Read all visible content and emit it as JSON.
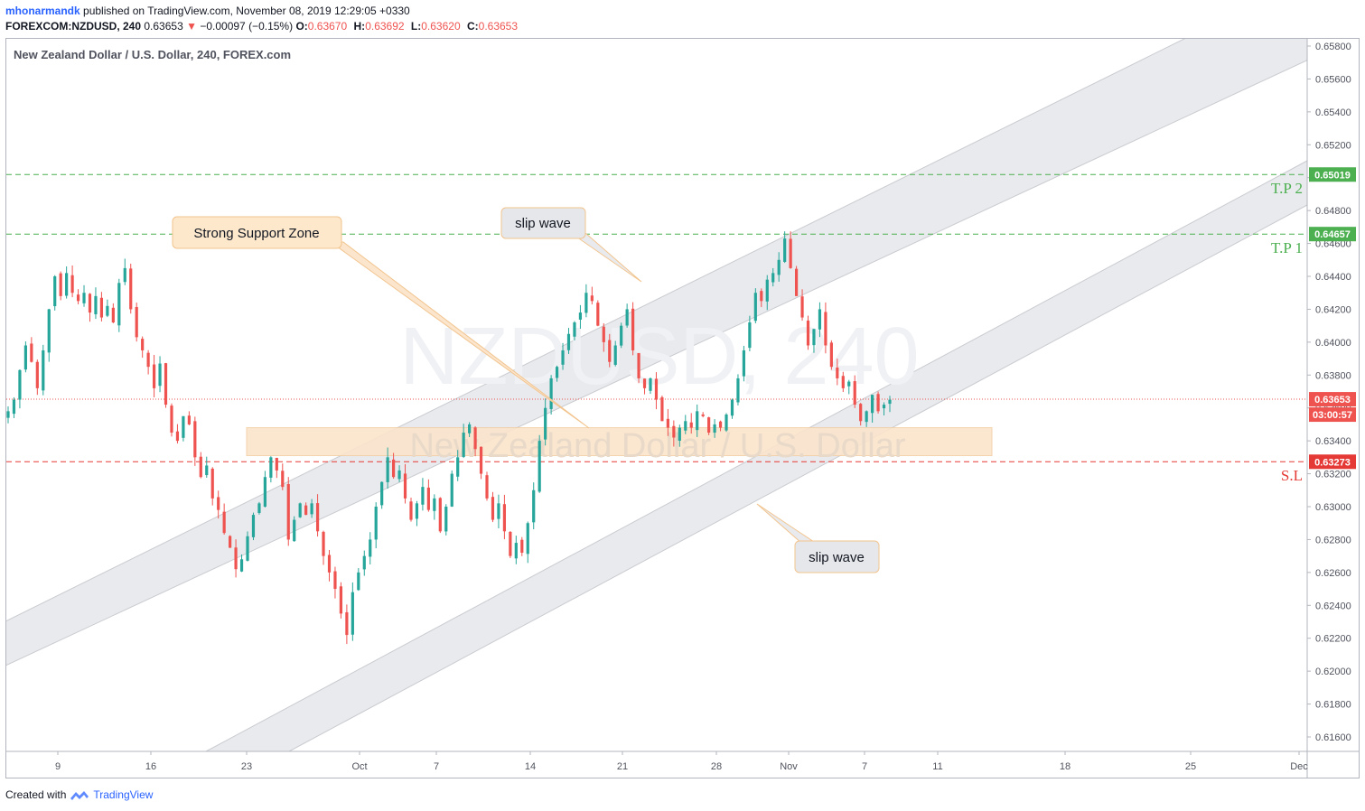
{
  "header": {
    "author": "mhonarmandk",
    "published_text": "published on TradingView.com, November 08, 2019 12:29:05 +0330",
    "symbol": "FOREXCOM:NZDUSD, 240",
    "last": "0.63653",
    "arrow": "▼",
    "change": "−0.00097 (−0.15%)",
    "o_label": "O:",
    "o_value": "0.63670",
    "h_label": "H:",
    "h_value": "0.63692",
    "l_label": "L:",
    "l_value": "0.63620",
    "c_label": "C:",
    "c_value": "0.63653"
  },
  "chart": {
    "title": "New Zealand Dollar / U.S. Dollar, 240, FOREX.com",
    "watermark_symbol": "NZDUSD, 240",
    "watermark_name": "New Zealand Dollar / U.S. Dollar"
  },
  "chart_data": {
    "type": "candlestick",
    "symbol": "NZDUSD",
    "timeframe": "240",
    "ylim": [
      0.615,
      0.659
    ],
    "y_ticks": [
      "0.65800",
      "0.65600",
      "0.65400",
      "0.65200",
      "0.65000",
      "0.64800",
      "0.64600",
      "0.64400",
      "0.64200",
      "0.64000",
      "0.63800",
      "0.63600",
      "0.63400",
      "0.63200",
      "0.63000",
      "0.62800",
      "0.62600",
      "0.62400",
      "0.62200",
      "0.62000",
      "0.61800",
      "0.61600"
    ],
    "x_ticks": [
      "9",
      "16",
      "23",
      "Oct",
      "7",
      "14",
      "21",
      "28",
      "Nov",
      "7",
      "11",
      "18",
      "25",
      "Dec"
    ],
    "close_path": [
      0.6358,
      0.6365,
      0.6383,
      0.6398,
      0.6388,
      0.6372,
      0.6395,
      0.642,
      0.644,
      0.6428,
      0.6442,
      0.643,
      0.6425,
      0.643,
      0.6418,
      0.6428,
      0.6415,
      0.6422,
      0.6412,
      0.6436,
      0.6445,
      0.642,
      0.6403,
      0.6395,
      0.6385,
      0.6372,
      0.6387,
      0.6362,
      0.6345,
      0.634,
      0.6355,
      0.635,
      0.633,
      0.6318,
      0.6325,
      0.6305,
      0.6298,
      0.6284,
      0.6275,
      0.6262,
      0.6268,
      0.6282,
      0.6295,
      0.6302,
      0.6318,
      0.633,
      0.6322,
      0.6312,
      0.628,
      0.6292,
      0.6302,
      0.6295,
      0.6302,
      0.6285,
      0.627,
      0.626,
      0.625,
      0.6235,
      0.6222,
      0.6248,
      0.626,
      0.627,
      0.628,
      0.63,
      0.6315,
      0.633,
      0.6318,
      0.6322,
      0.6305,
      0.6292,
      0.6302,
      0.6312,
      0.6298,
      0.6305,
      0.6285,
      0.63,
      0.632,
      0.633,
      0.6345,
      0.635,
      0.6335,
      0.632,
      0.6305,
      0.6292,
      0.6302,
      0.6285,
      0.627,
      0.6278,
      0.6272,
      0.629,
      0.631,
      0.634,
      0.636,
      0.6378,
      0.6385,
      0.6395,
      0.6405,
      0.6412,
      0.6418,
      0.643,
      0.6425,
      0.641,
      0.64,
      0.6388,
      0.6398,
      0.641,
      0.642,
      0.6395,
      0.6378,
      0.6372,
      0.6378,
      0.6365,
      0.6352,
      0.6348,
      0.6342,
      0.6348,
      0.6352,
      0.6348,
      0.6358,
      0.6355,
      0.6345,
      0.635,
      0.6348,
      0.6356,
      0.6365,
      0.6378,
      0.6395,
      0.6412,
      0.643,
      0.6425,
      0.6438,
      0.6442,
      0.645,
      0.6463,
      0.6445,
      0.6428,
      0.6415,
      0.6398,
      0.6408,
      0.642,
      0.6398,
      0.6385,
      0.6378,
      0.6372,
      0.6376,
      0.6362,
      0.6352,
      0.6358,
      0.6368,
      0.6358,
      0.6362,
      0.6365
    ],
    "horizontal_levels": [
      {
        "label": "T.P 2",
        "price_label": "0.65019",
        "value": 0.65019,
        "color": "#4caf50"
      },
      {
        "label": "T.P 1",
        "price_label": "0.64657",
        "value": 0.64657,
        "color": "#4caf50"
      },
      {
        "label": "S.L",
        "price_label": "0.63273",
        "value": 0.63273,
        "color": "#e53935"
      }
    ],
    "current_price": {
      "value": 0.63653,
      "label": "0.63653",
      "countdown": "03:00:57"
    },
    "support_zone": {
      "top": 0.6348,
      "bottom": 0.6331,
      "color": "#ffe0b2"
    },
    "callouts": [
      "Strong Support Zone",
      "slip wave",
      "slip wave"
    ],
    "colors": {
      "up": "#26a69a",
      "down": "#ef5350",
      "channel": "#e9eaed"
    }
  },
  "footer": {
    "created_with": "Created with",
    "brand": "TradingView"
  }
}
